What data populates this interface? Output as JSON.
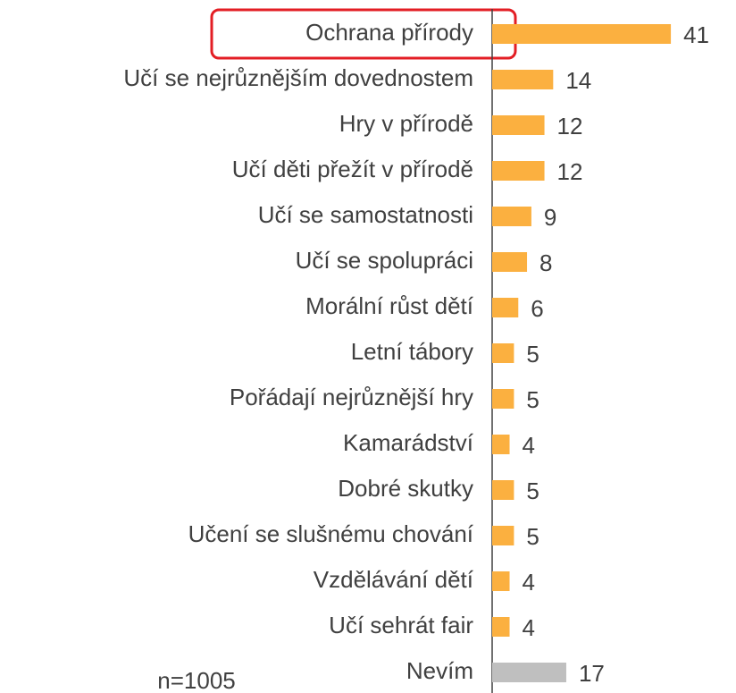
{
  "chart_data": {
    "type": "barh",
    "categories": [
      "Ochrana přírody",
      "Učí se nejrůznějším dovednostem",
      "Hry v přírodě",
      "Učí děti přežít v přírodě",
      "Učí se samostatnosti",
      "Učí se spolupráci",
      "Morální růst dětí",
      "Letní tábory",
      "Pořádají nejrůznější hry",
      "Kamarádství",
      "Dobré skutky",
      "Učení se slušnému chování",
      "Vzdělávání dětí",
      "Učí sehrát fair",
      "Nevím"
    ],
    "values": [
      41,
      14,
      12,
      12,
      9,
      8,
      6,
      5,
      5,
      4,
      5,
      5,
      4,
      4,
      17
    ],
    "colors": [
      "#fbb040",
      "#fbb040",
      "#fbb040",
      "#fbb040",
      "#fbb040",
      "#fbb040",
      "#fbb040",
      "#fbb040",
      "#fbb040",
      "#fbb040",
      "#fbb040",
      "#fbb040",
      "#fbb040",
      "#fbb040",
      "#bfbfbf"
    ],
    "annotation": "n=1005"
  }
}
